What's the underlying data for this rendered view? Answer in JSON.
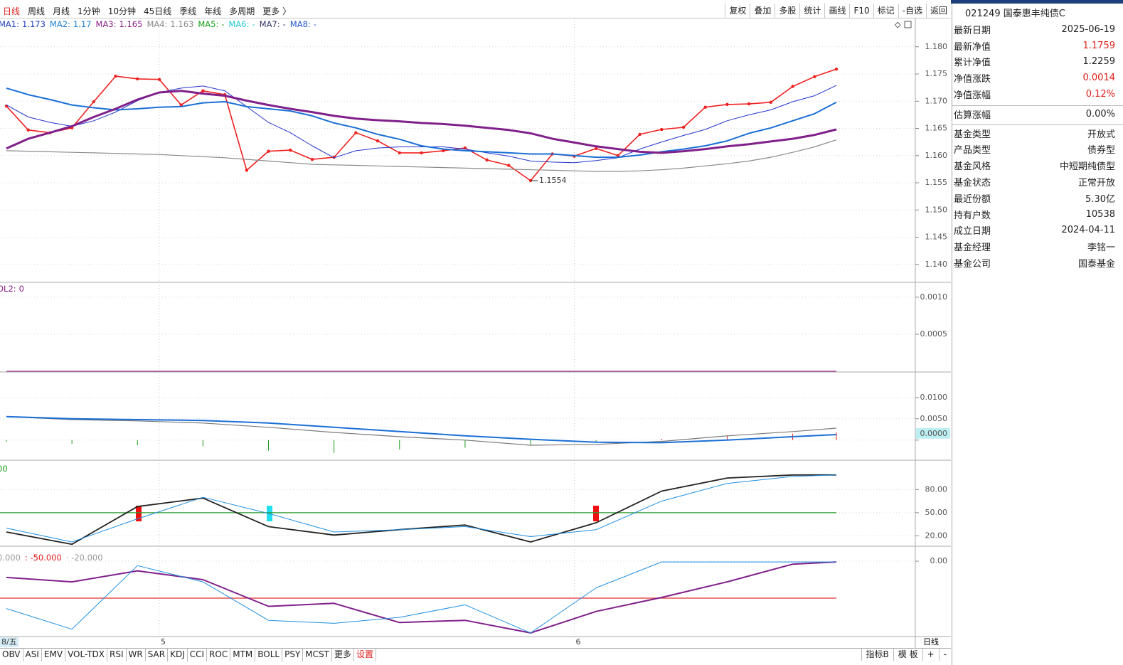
{
  "toolbar": {
    "periods": [
      "日线",
      "周线",
      "月线",
      "1分钟",
      "10分钟",
      "45日线",
      "季线",
      "年线",
      "多周期",
      "更多 〉"
    ],
    "tools": [
      "复权",
      "叠加",
      "多股",
      "统计",
      "画线",
      "F10",
      "标记",
      "-自选",
      "返回"
    ]
  },
  "info_panel": {
    "title": "021249 国泰惠丰纯债C",
    "rows": [
      {
        "label": "最新日期",
        "value": "2025-06-19"
      },
      {
        "label": "最新净值",
        "value": "1.1759",
        "color": "#e0201a"
      },
      {
        "label": "累计净值",
        "value": "1.2259"
      },
      {
        "label": "净值涨跌",
        "value": "0.0014",
        "color": "#e0201a"
      },
      {
        "label": "净值涨幅",
        "value": "0.12%",
        "color": "#e0201a"
      },
      {
        "label": "估算涨幅",
        "value": "0.00%"
      },
      {
        "label": "基金类型",
        "value": "开放式"
      },
      {
        "label": "产品类型",
        "value": "债券型"
      },
      {
        "label": "基金风格",
        "value": "中短期纯债型"
      },
      {
        "label": "基金状态",
        "value": "正常开放"
      },
      {
        "label": "最近份额",
        "value": "5.30亿"
      },
      {
        "label": "持有户数",
        "value": "10538"
      },
      {
        "label": "成立日期",
        "value": "2024-04-11"
      },
      {
        "label": "基金经理",
        "value": "李铭一"
      },
      {
        "label": "基金公司",
        "value": "国泰基金"
      }
    ]
  },
  "bottom_tabs": [
    "OBV",
    "ASI",
    "EMV",
    "VOL-TDX",
    "RSI",
    "WR",
    "SAR",
    "KDJ",
    "CCI",
    "ROC",
    "MTM",
    "BOLL",
    "PSY",
    "MCST",
    "更多",
    "设置"
  ],
  "bottom_right": [
    "指标B",
    "模 板",
    "+",
    "-"
  ],
  "axis_corner": "日线",
  "chart_data": [
    {
      "type": "line",
      "categories": [
        "8/五",
        null,
        null,
        null,
        null,
        null,
        null,
        "5",
        null,
        null,
        null,
        null,
        null,
        null,
        null,
        null,
        null,
        null,
        null,
        null,
        null,
        null,
        null,
        null,
        null,
        null,
        "6",
        null,
        null,
        null,
        null,
        null,
        null,
        null,
        null,
        null,
        null,
        null,
        null
      ],
      "ylim": [
        1.1367,
        1.1852
      ],
      "yticks": [
        {
          "value": 1.18,
          "label": "1.180"
        },
        {
          "value": 1.175,
          "label": "1.175"
        },
        {
          "value": 1.17,
          "label": "1.170"
        },
        {
          "value": 1.165,
          "label": "1.165"
        },
        {
          "value": 1.16,
          "label": "1.160"
        },
        {
          "value": 1.155,
          "label": "1.155"
        },
        {
          "value": 1.15,
          "label": "1.150"
        },
        {
          "value": 1.145,
          "label": "1.145"
        },
        {
          "value": 1.14,
          "label": "1.140"
        }
      ],
      "grid": true,
      "legend": [
        {
          "name": "MA1:",
          "value": 1.173,
          "color": "#1f3fbf"
        },
        {
          "name": "MA2:",
          "value": 1.17,
          "color": "#1a7fd6"
        },
        {
          "name": "MA3:",
          "value": 1.165,
          "color": "#8a1f8a"
        },
        {
          "name": "MA4:",
          "value": 1.163,
          "color": "#888888"
        },
        {
          "name": "MA5:",
          "value": "-",
          "color": "#1aa01a"
        },
        {
          "name": "MA6:",
          "value": "-",
          "color": "#20c8d0"
        },
        {
          "name": "MA7:",
          "value": "-",
          "color": "#333366"
        },
        {
          "name": "MA8:",
          "value": "-",
          "color": "#2255cc"
        }
      ],
      "series": [
        {
          "color": "#f02020",
          "width": 1.6,
          "markers": true,
          "values": [
            1.1691,
            1.1647,
            1.1642,
            1.1651,
            1.1699,
            1.1746,
            1.1741,
            1.174,
            1.1693,
            1.1719,
            1.1712,
            1.1573,
            1.1608,
            1.161,
            1.1593,
            1.1597,
            1.1642,
            1.1627,
            1.1605,
            1.1605,
            1.1609,
            1.1614,
            1.1592,
            1.1582,
            1.1554,
            1.1603,
            1.1599,
            1.1613,
            1.16,
            1.1639,
            1.1648,
            1.1652,
            1.1689,
            1.1694,
            1.1695,
            1.1698,
            1.1727,
            1.1745,
            1.1759
          ]
        },
        {
          "color": "#2233cc",
          "width": 1,
          "values": [
            1.1693,
            1.1671,
            1.1661,
            1.1654,
            1.1664,
            1.168,
            1.1701,
            1.1716,
            1.1724,
            1.1728,
            1.1719,
            1.169,
            1.1661,
            1.1642,
            1.1618,
            1.1596,
            1.1609,
            1.1614,
            1.1616,
            1.1616,
            1.1616,
            1.1612,
            1.1605,
            1.1599,
            1.159,
            1.1588,
            1.1587,
            1.1591,
            1.1596,
            1.1612,
            1.1625,
            1.1637,
            1.1648,
            1.1664,
            1.1675,
            1.1684,
            1.1699,
            1.171,
            1.1729
          ]
        },
        {
          "color": "#1a6fd6",
          "width": 2,
          "values": [
            1.1724,
            1.1712,
            1.1703,
            1.1693,
            1.1688,
            1.1684,
            1.1686,
            1.1689,
            1.169,
            1.1697,
            1.1699,
            1.169,
            1.1686,
            1.1682,
            1.1673,
            1.166,
            1.1651,
            1.1639,
            1.163,
            1.1618,
            1.1612,
            1.1609,
            1.1607,
            1.1605,
            1.1603,
            1.1603,
            1.16,
            1.1597,
            1.1597,
            1.1601,
            1.1607,
            1.1612,
            1.1618,
            1.1627,
            1.1641,
            1.1651,
            1.1664,
            1.1677,
            1.1698
          ]
        },
        {
          "color": "#80208a",
          "width": 3,
          "values": [
            1.1613,
            1.1631,
            1.1642,
            1.1654,
            1.1671,
            1.1686,
            1.1703,
            1.1716,
            1.1719,
            1.1714,
            1.171,
            1.1701,
            1.1693,
            1.1686,
            1.168,
            1.1673,
            1.1668,
            1.1665,
            1.1663,
            1.166,
            1.1658,
            1.1655,
            1.1651,
            1.1647,
            1.1641,
            1.1631,
            1.1624,
            1.1617,
            1.1612,
            1.1607,
            1.1605,
            1.1608,
            1.1612,
            1.1617,
            1.1621,
            1.1626,
            1.1631,
            1.1638,
            1.1648
          ]
        },
        {
          "color": "#8a8a8a",
          "width": 1.2,
          "values": [
            1.1609,
            1.1608,
            1.1607,
            1.1606,
            1.1605,
            1.1604,
            1.1603,
            1.1602,
            1.16,
            1.1598,
            1.1596,
            1.1593,
            1.159,
            1.1587,
            1.1584,
            1.1583,
            1.1582,
            1.1581,
            1.158,
            1.1579,
            1.1578,
            1.1577,
            1.1576,
            1.1575,
            1.1574,
            1.1573,
            1.1572,
            1.1571,
            1.1571,
            1.1572,
            1.1574,
            1.1577,
            1.1581,
            1.1585,
            1.159,
            1.1597,
            1.1606,
            1.1616,
            1.1629
          ]
        }
      ],
      "annotations": [
        {
          "index": 24,
          "label": "1.1554"
        }
      ]
    },
    {
      "type": "line",
      "x": [
        0,
        3,
        6,
        9,
        12,
        15,
        18,
        21,
        24,
        27,
        30,
        33,
        36,
        38
      ],
      "xlim": [
        0,
        38
      ],
      "ylim": [
        0,
        0.0012
      ],
      "yticks": [
        {
          "value": 0.001,
          "label": "0.0010"
        },
        {
          "value": 0.0005,
          "label": "0.0005"
        }
      ],
      "grid": true,
      "legend": [
        {
          "name": "OL2:",
          "value": 0,
          "color": "#8a1f8a"
        }
      ],
      "series": [
        {
          "color": "#a03090",
          "width": 1.2,
          "values": [
            0,
            0,
            0,
            0,
            0,
            0,
            0,
            0,
            0,
            0,
            0,
            0,
            0,
            0
          ]
        }
      ]
    },
    {
      "type": "line",
      "x": [
        0,
        3,
        6,
        9,
        12,
        15,
        18,
        21,
        24,
        27,
        30,
        33,
        36,
        38
      ],
      "xlim": [
        0,
        38
      ],
      "ylim": [
        -0.0047,
        0.0148
      ],
      "yticks": [
        {
          "value": 0.01,
          "label": "0.0100"
        },
        {
          "value": 0.005,
          "label": "0.0050"
        },
        {
          "value": 0,
          "label": "0.0000"
        }
      ],
      "grid": true,
      "highlight_zero": true,
      "series": [
        {
          "kind": "bar",
          "color_pos": "#e02020",
          "color_neg": "#1a9a1a",
          "values": [
            -0.0004,
            -0.0009,
            -0.0012,
            -0.0015,
            -0.0025,
            -0.003,
            -0.0022,
            -0.0018,
            -0.0012,
            -0.0003,
            0.0003,
            0.0012,
            0.0015,
            0.0018
          ]
        },
        {
          "color": "#7a7a7a",
          "width": 1.2,
          "values": [
            0.0055,
            0.0048,
            0.0045,
            0.004,
            0.003,
            0.0018,
            0.0008,
            0.0,
            -0.0012,
            -0.001,
            -0.0003,
            0.001,
            0.002,
            0.0028
          ]
        },
        {
          "color": "#1a6fd6",
          "width": 2,
          "values": [
            0.0055,
            0.005,
            0.0048,
            0.0046,
            0.004,
            0.003,
            0.002,
            0.001,
            0.0002,
            -0.0005,
            -0.0006,
            0.0,
            0.0008,
            0.0013
          ]
        }
      ]
    },
    {
      "type": "line",
      "x": [
        0,
        3,
        6,
        9,
        12,
        15,
        18,
        21,
        24,
        27,
        30,
        33,
        36,
        38
      ],
      "xlim": [
        0,
        38
      ],
      "ylim": [
        6.5,
        115.4
      ],
      "yticks": [
        {
          "value": 80,
          "label": "80.00"
        },
        {
          "value": 50,
          "label": "50.00"
        },
        {
          "value": 20,
          "label": "20.00"
        }
      ],
      "grid": true,
      "legend": [
        {
          "name": "00",
          "color": "#1aa01a"
        }
      ],
      "hlines": [
        {
          "value": 50,
          "color": "#2a9a2a"
        }
      ],
      "series": [
        {
          "color": "#222222",
          "width": 1.8,
          "values": [
            25,
            9,
            58,
            69,
            32,
            21,
            28,
            34,
            12,
            37,
            78,
            95,
            99,
            99
          ]
        },
        {
          "color": "#1f8fe0",
          "width": 1,
          "values": [
            30,
            12,
            42,
            70,
            49,
            25,
            28,
            32,
            19,
            28,
            65,
            88,
            97,
            99
          ]
        }
      ]
    },
    {
      "type": "line",
      "x": [
        0,
        3,
        6,
        9,
        12,
        15,
        18,
        21,
        24,
        27,
        30,
        33,
        36,
        38
      ],
      "xlim": [
        0,
        38
      ],
      "ylim": [
        -100,
        13.5
      ],
      "yticks": [
        {
          "value": 0,
          "label": "0.00"
        }
      ],
      "grid": true,
      "legend": [
        {
          "name": "0.000",
          "color": "#999999"
        },
        {
          "name": ": -50.000",
          "color": "#e02020"
        },
        {
          "name": "· -20.000",
          "color": "#999999"
        }
      ],
      "hlines": [
        {
          "value": -50,
          "color": "#e03030"
        }
      ],
      "series": [
        {
          "color": "#80208a",
          "width": 2,
          "values": [
            -22,
            -28,
            -13,
            -25,
            -61,
            -57,
            -83,
            -80,
            -97,
            -68,
            -49,
            -28,
            -4,
            -1
          ]
        },
        {
          "color": "#1f8fe0",
          "width": 1,
          "values": [
            -64,
            -92,
            -6,
            -28,
            -80,
            -84,
            -76,
            -59,
            -97,
            -36,
            -1,
            -1,
            -1,
            -1
          ]
        }
      ]
    }
  ]
}
